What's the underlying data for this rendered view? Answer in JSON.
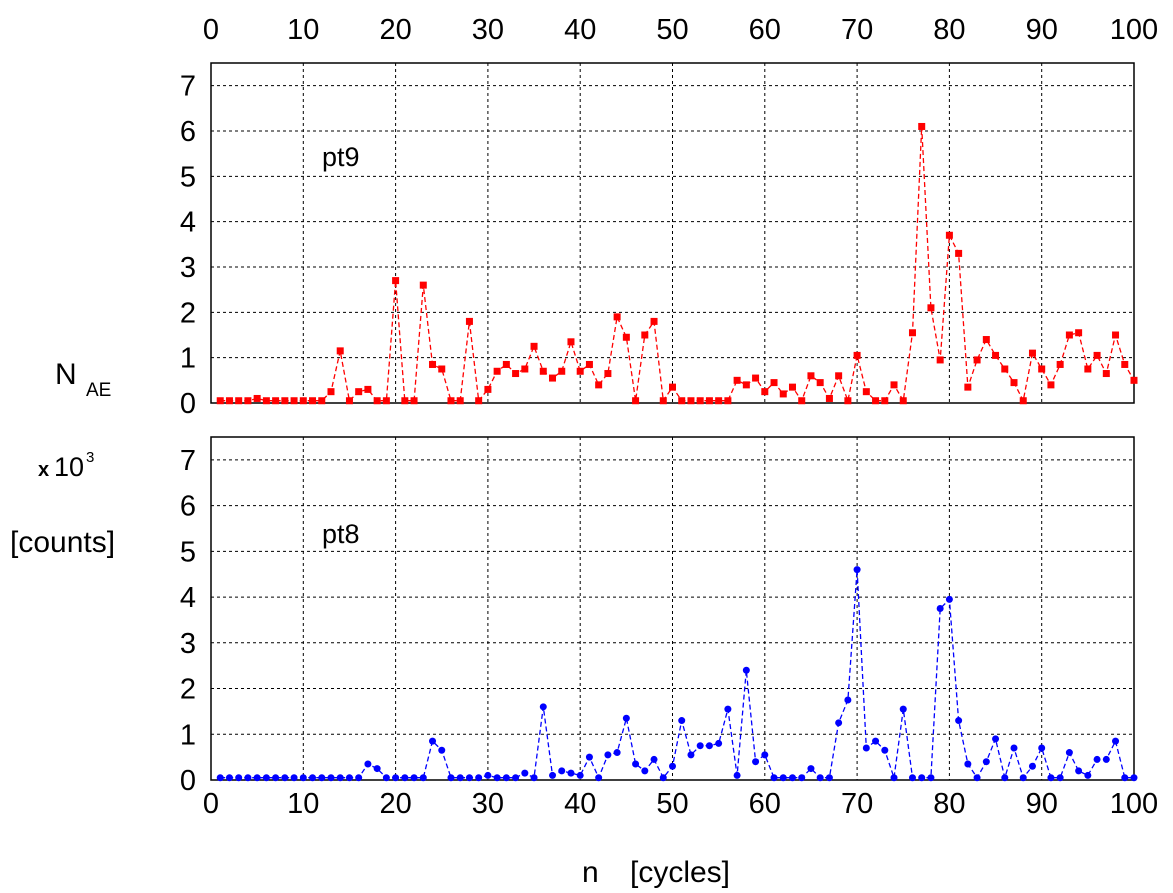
{
  "chart_data": [
    {
      "type": "line",
      "panel_label": "pt9",
      "ylabel": "N",
      "ylabel_subscript": "AE",
      "ylim": [
        0,
        7.5
      ],
      "xlim": [
        0,
        100
      ],
      "xticks": [
        "0",
        "10",
        "20",
        "30",
        "40",
        "50",
        "60",
        "70",
        "80",
        "90",
        "100"
      ],
      "yticks": [
        "0",
        "1",
        "2",
        "3",
        "4",
        "5",
        "6",
        "7"
      ],
      "grid": true,
      "series": [
        {
          "color": "#ff0000",
          "marker": "square",
          "x": [
            1,
            2,
            3,
            4,
            5,
            6,
            7,
            8,
            9,
            10,
            11,
            12,
            13,
            14,
            15,
            16,
            17,
            18,
            19,
            20,
            21,
            22,
            23,
            24,
            25,
            26,
            27,
            28,
            29,
            30,
            31,
            32,
            33,
            34,
            35,
            36,
            37,
            38,
            39,
            40,
            41,
            42,
            43,
            44,
            45,
            46,
            47,
            48,
            49,
            50,
            51,
            52,
            53,
            54,
            55,
            56,
            57,
            58,
            59,
            60,
            61,
            62,
            63,
            64,
            65,
            66,
            67,
            68,
            69,
            70,
            71,
            72,
            73,
            74,
            75,
            76,
            77,
            78,
            79,
            80,
            81,
            82,
            83,
            84,
            85,
            86,
            87,
            88,
            89,
            90,
            91,
            92,
            93,
            94,
            95,
            96,
            97,
            98,
            99,
            100
          ],
          "y": [
            0.05,
            0.05,
            0.05,
            0.05,
            0.1,
            0.05,
            0.05,
            0.05,
            0.05,
            0.05,
            0.05,
            0.05,
            0.25,
            1.15,
            0.05,
            0.25,
            0.3,
            0.05,
            0.05,
            2.7,
            0.05,
            0.05,
            2.6,
            0.85,
            0.75,
            0.05,
            0.05,
            1.8,
            0.05,
            0.3,
            0.7,
            0.85,
            0.65,
            0.75,
            1.25,
            0.7,
            0.55,
            0.7,
            1.35,
            0.7,
            0.85,
            0.4,
            0.65,
            1.9,
            1.45,
            0.05,
            1.5,
            1.8,
            0.05,
            0.35,
            0.05,
            0.05,
            0.05,
            0.05,
            0.05,
            0.05,
            0.5,
            0.4,
            0.55,
            0.25,
            0.45,
            0.2,
            0.35,
            0.05,
            0.6,
            0.45,
            0.1,
            0.6,
            0.05,
            1.05,
            0.25,
            0.05,
            0.05,
            0.4,
            0.05,
            1.55,
            6.1,
            2.1,
            0.95,
            3.7,
            3.3,
            0.35,
            0.95,
            1.4,
            1.05,
            0.75,
            0.45,
            0.05,
            1.1,
            0.75,
            0.4,
            0.85,
            1.5,
            1.55,
            0.75,
            1.05,
            0.65,
            1.5,
            0.85,
            0.5
          ]
        }
      ]
    },
    {
      "type": "line",
      "panel_label": "pt8",
      "ylim": [
        0,
        7.5
      ],
      "xlim": [
        0,
        100
      ],
      "xticks": [
        "0",
        "10",
        "20",
        "30",
        "40",
        "50",
        "60",
        "70",
        "80",
        "90",
        "100"
      ],
      "yticks": [
        "0",
        "1",
        "2",
        "3",
        "4",
        "5",
        "6",
        "7"
      ],
      "xlabel": "n   [cycles]",
      "grid": true,
      "series": [
        {
          "color": "#0000ff",
          "marker": "circle",
          "x": [
            1,
            2,
            3,
            4,
            5,
            6,
            7,
            8,
            9,
            10,
            11,
            12,
            13,
            14,
            15,
            16,
            17,
            18,
            19,
            20,
            21,
            22,
            23,
            24,
            25,
            26,
            27,
            28,
            29,
            30,
            31,
            32,
            33,
            34,
            35,
            36,
            37,
            38,
            39,
            40,
            41,
            42,
            43,
            44,
            45,
            46,
            47,
            48,
            49,
            50,
            51,
            52,
            53,
            54,
            55,
            56,
            57,
            58,
            59,
            60,
            61,
            62,
            63,
            64,
            65,
            66,
            67,
            68,
            69,
            70,
            71,
            72,
            73,
            74,
            75,
            76,
            77,
            78,
            79,
            80,
            81,
            82,
            83,
            84,
            85,
            86,
            87,
            88,
            89,
            90,
            91,
            92,
            93,
            94,
            95,
            96,
            97,
            98,
            99,
            100
          ],
          "y": [
            0.05,
            0.05,
            0.05,
            0.05,
            0.05,
            0.05,
            0.05,
            0.05,
            0.05,
            0.05,
            0.05,
            0.05,
            0.05,
            0.05,
            0.05,
            0.05,
            0.35,
            0.25,
            0.05,
            0.05,
            0.05,
            0.05,
            0.05,
            0.85,
            0.65,
            0.05,
            0.05,
            0.05,
            0.05,
            0.1,
            0.05,
            0.05,
            0.05,
            0.15,
            0.05,
            1.6,
            0.1,
            0.2,
            0.15,
            0.1,
            0.5,
            0.05,
            0.55,
            0.6,
            1.35,
            0.35,
            0.2,
            0.45,
            0.05,
            0.3,
            1.3,
            0.55,
            0.75,
            0.75,
            0.8,
            1.55,
            0.1,
            2.4,
            0.4,
            0.55,
            0.05,
            0.05,
            0.05,
            0.05,
            0.25,
            0.05,
            0.05,
            1.25,
            1.75,
            4.6,
            0.7,
            0.85,
            0.65,
            0.05,
            1.55,
            0.05,
            0.05,
            0.05,
            3.75,
            3.95,
            1.3,
            0.35,
            0.05,
            0.4,
            0.9,
            0.05,
            0.7,
            0.05,
            0.3,
            0.7,
            0.05,
            0.05,
            0.6,
            0.2,
            0.1,
            0.45,
            0.45,
            0.85,
            0.05,
            0.05
          ]
        }
      ]
    }
  ],
  "yaxis_label": {
    "text": "N",
    "subscript": "AE",
    "multiplier_prefix": "x",
    "multiplier_base": "10",
    "multiplier_exponent": "3",
    "unit": "[counts]"
  },
  "xaxis_label": {
    "variable": "n",
    "unit": "[cycles]"
  }
}
